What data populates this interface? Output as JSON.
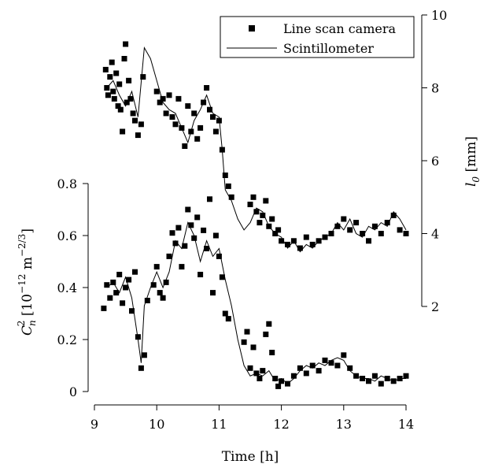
{
  "chart_data": {
    "type": "scatter",
    "xlabel": "Time [h]",
    "x_ticks": [
      "9",
      "10",
      "11",
      "12",
      "13",
      "14"
    ],
    "xlim": [
      9,
      14
    ],
    "left_axis": {
      "label_main": "C",
      "label_sub": "n",
      "label_sup": "2",
      "label_rest": " [10",
      "label_exp": "−12",
      "label_unit": " m",
      "label_unit_exp": "−2/3",
      "label_close": "]",
      "ylim": [
        0,
        0.8
      ],
      "ticks": [
        "0",
        "0.2",
        "0.4",
        "0.6",
        "0.8"
      ]
    },
    "right_axis": {
      "label_main": "l",
      "label_sub": "0",
      "label_rest": " [mm]",
      "ylim": [
        2,
        10
      ],
      "ticks": [
        "2",
        "4",
        "6",
        "8",
        "10"
      ]
    },
    "legend": {
      "placement": "top-right",
      "entries": [
        "Line scan camera",
        "Scintillometer"
      ]
    },
    "series": [
      {
        "name": "Line scan camera",
        "axis": "right",
        "style": "markers",
        "x": [
          9.18,
          9.2,
          9.22,
          9.25,
          9.28,
          9.3,
          9.32,
          9.35,
          9.38,
          9.4,
          9.42,
          9.45,
          9.48,
          9.5,
          9.52,
          9.55,
          9.58,
          9.62,
          9.65,
          9.7,
          9.75,
          9.78,
          10.0,
          10.05,
          10.1,
          10.15,
          10.2,
          10.25,
          10.3,
          10.35,
          10.4,
          10.45,
          10.5,
          10.55,
          10.6,
          10.65,
          10.7,
          10.75,
          10.8,
          10.85,
          10.9,
          10.95,
          11.0,
          11.05,
          11.1,
          11.15,
          11.2,
          11.5,
          11.55,
          11.6,
          11.65,
          11.7,
          11.75,
          11.8,
          11.85,
          11.9,
          11.95,
          12.0,
          12.1,
          12.2,
          12.3,
          12.4,
          12.5,
          12.6,
          12.7,
          12.8,
          12.9,
          13.0,
          13.1,
          13.2,
          13.3,
          13.4,
          13.5,
          13.6,
          13.7,
          13.8,
          13.9,
          14.0
        ],
        "y": [
          8.5,
          8.0,
          7.8,
          8.3,
          8.7,
          7.9,
          7.7,
          8.4,
          7.5,
          8.1,
          7.4,
          6.8,
          8.8,
          9.2,
          7.6,
          8.2,
          7.7,
          7.3,
          7.1,
          6.7,
          7.0,
          8.3,
          7.9,
          7.6,
          7.7,
          7.3,
          7.8,
          7.2,
          7.0,
          7.7,
          6.9,
          6.4,
          7.5,
          6.8,
          7.3,
          6.6,
          6.9,
          7.6,
          8.0,
          7.4,
          7.2,
          6.8,
          7.1,
          6.3,
          5.6,
          5.3,
          5.0,
          4.8,
          5.0,
          4.6,
          4.3,
          4.5,
          4.9,
          4.2,
          4.4,
          4.0,
          4.1,
          3.8,
          3.7,
          3.8,
          3.6,
          3.9,
          3.7,
          3.8,
          3.9,
          4.0,
          4.2,
          4.4,
          4.1,
          4.3,
          4.0,
          3.8,
          4.2,
          4.0,
          4.3,
          4.5,
          4.1,
          4.0
        ]
      },
      {
        "name": "Scintillometer",
        "axis": "right",
        "style": "line",
        "x": [
          9.2,
          9.3,
          9.4,
          9.5,
          9.6,
          9.7,
          9.8,
          9.9,
          10.0,
          10.1,
          10.2,
          10.3,
          10.4,
          10.5,
          10.6,
          10.7,
          10.8,
          10.9,
          11.0,
          11.05,
          11.1,
          11.2,
          11.3,
          11.4,
          11.5,
          11.6,
          11.7,
          11.8,
          11.9,
          12.0,
          12.1,
          12.2,
          12.3,
          12.4,
          12.5,
          12.6,
          12.7,
          12.8,
          12.9,
          13.0,
          13.1,
          13.2,
          13.3,
          13.4,
          13.5,
          13.6,
          13.7,
          13.8,
          13.9,
          14.0
        ],
        "y": [
          8.0,
          8.2,
          7.8,
          7.5,
          7.9,
          7.2,
          9.1,
          8.8,
          8.2,
          7.6,
          7.4,
          7.3,
          6.9,
          6.5,
          7.1,
          7.4,
          7.8,
          7.3,
          7.2,
          6.3,
          5.2,
          4.9,
          4.4,
          4.1,
          4.3,
          4.7,
          4.6,
          4.2,
          4.0,
          3.9,
          3.6,
          3.8,
          3.5,
          3.7,
          3.6,
          3.8,
          3.9,
          4.0,
          4.3,
          4.1,
          4.4,
          4.0,
          3.9,
          4.2,
          4.1,
          4.3,
          4.2,
          4.6,
          4.4,
          4.1
        ]
      },
      {
        "name": "Line scan camera",
        "axis": "left",
        "style": "markers",
        "x": [
          9.15,
          9.2,
          9.25,
          9.3,
          9.35,
          9.4,
          9.45,
          9.5,
          9.55,
          9.6,
          9.65,
          9.7,
          9.75,
          9.8,
          9.85,
          9.95,
          10.0,
          10.05,
          10.1,
          10.15,
          10.2,
          10.25,
          10.3,
          10.35,
          10.4,
          10.45,
          10.5,
          10.55,
          10.6,
          10.65,
          10.7,
          10.75,
          10.8,
          10.85,
          10.9,
          10.95,
          11.0,
          11.05,
          11.1,
          11.15,
          11.4,
          11.45,
          11.5,
          11.55,
          11.6,
          11.65,
          11.7,
          11.75,
          11.8,
          11.85,
          11.9,
          11.95,
          12.0,
          12.1,
          12.2,
          12.3,
          12.4,
          12.5,
          12.6,
          12.7,
          12.8,
          12.9,
          13.0,
          13.1,
          13.2,
          13.3,
          13.4,
          13.5,
          13.6,
          13.7,
          13.8,
          13.9,
          14.0
        ],
        "y": [
          0.32,
          0.41,
          0.36,
          0.42,
          0.38,
          0.45,
          0.34,
          0.4,
          0.43,
          0.31,
          0.46,
          0.21,
          0.09,
          0.14,
          0.35,
          0.41,
          0.48,
          0.38,
          0.36,
          0.42,
          0.52,
          0.61,
          0.57,
          0.63,
          0.48,
          0.56,
          0.7,
          0.64,
          0.59,
          0.67,
          0.45,
          0.62,
          0.55,
          0.74,
          0.38,
          0.6,
          0.52,
          0.44,
          0.3,
          0.28,
          0.19,
          0.23,
          0.09,
          0.17,
          0.07,
          0.05,
          0.08,
          0.22,
          0.26,
          0.15,
          0.05,
          0.02,
          0.04,
          0.03,
          0.06,
          0.09,
          0.07,
          0.1,
          0.08,
          0.12,
          0.11,
          0.1,
          0.14,
          0.09,
          0.06,
          0.05,
          0.04,
          0.06,
          0.03,
          0.05,
          0.04,
          0.05,
          0.06
        ]
      },
      {
        "name": "Scintillometer",
        "axis": "left",
        "style": "line",
        "x": [
          9.2,
          9.3,
          9.4,
          9.5,
          9.6,
          9.7,
          9.75,
          9.8,
          9.9,
          10.0,
          10.1,
          10.2,
          10.3,
          10.4,
          10.5,
          10.6,
          10.7,
          10.8,
          10.9,
          11.0,
          11.1,
          11.2,
          11.3,
          11.4,
          11.5,
          11.6,
          11.7,
          11.8,
          11.9,
          12.0,
          12.1,
          12.2,
          12.3,
          12.4,
          12.5,
          12.6,
          12.7,
          12.8,
          12.9,
          13.0,
          13.1,
          13.2,
          13.3,
          13.4,
          13.5,
          13.6,
          13.7,
          13.8,
          13.9,
          14.0
        ],
        "y": [
          0.4,
          0.42,
          0.38,
          0.44,
          0.36,
          0.2,
          0.11,
          0.33,
          0.4,
          0.46,
          0.4,
          0.46,
          0.58,
          0.55,
          0.65,
          0.6,
          0.5,
          0.58,
          0.52,
          0.55,
          0.43,
          0.33,
          0.2,
          0.1,
          0.06,
          0.07,
          0.06,
          0.08,
          0.04,
          0.05,
          0.03,
          0.05,
          0.08,
          0.1,
          0.09,
          0.11,
          0.1,
          0.12,
          0.13,
          0.12,
          0.08,
          0.06,
          0.05,
          0.05,
          0.04,
          0.06,
          0.05,
          0.04,
          0.05,
          0.05
        ]
      }
    ]
  }
}
